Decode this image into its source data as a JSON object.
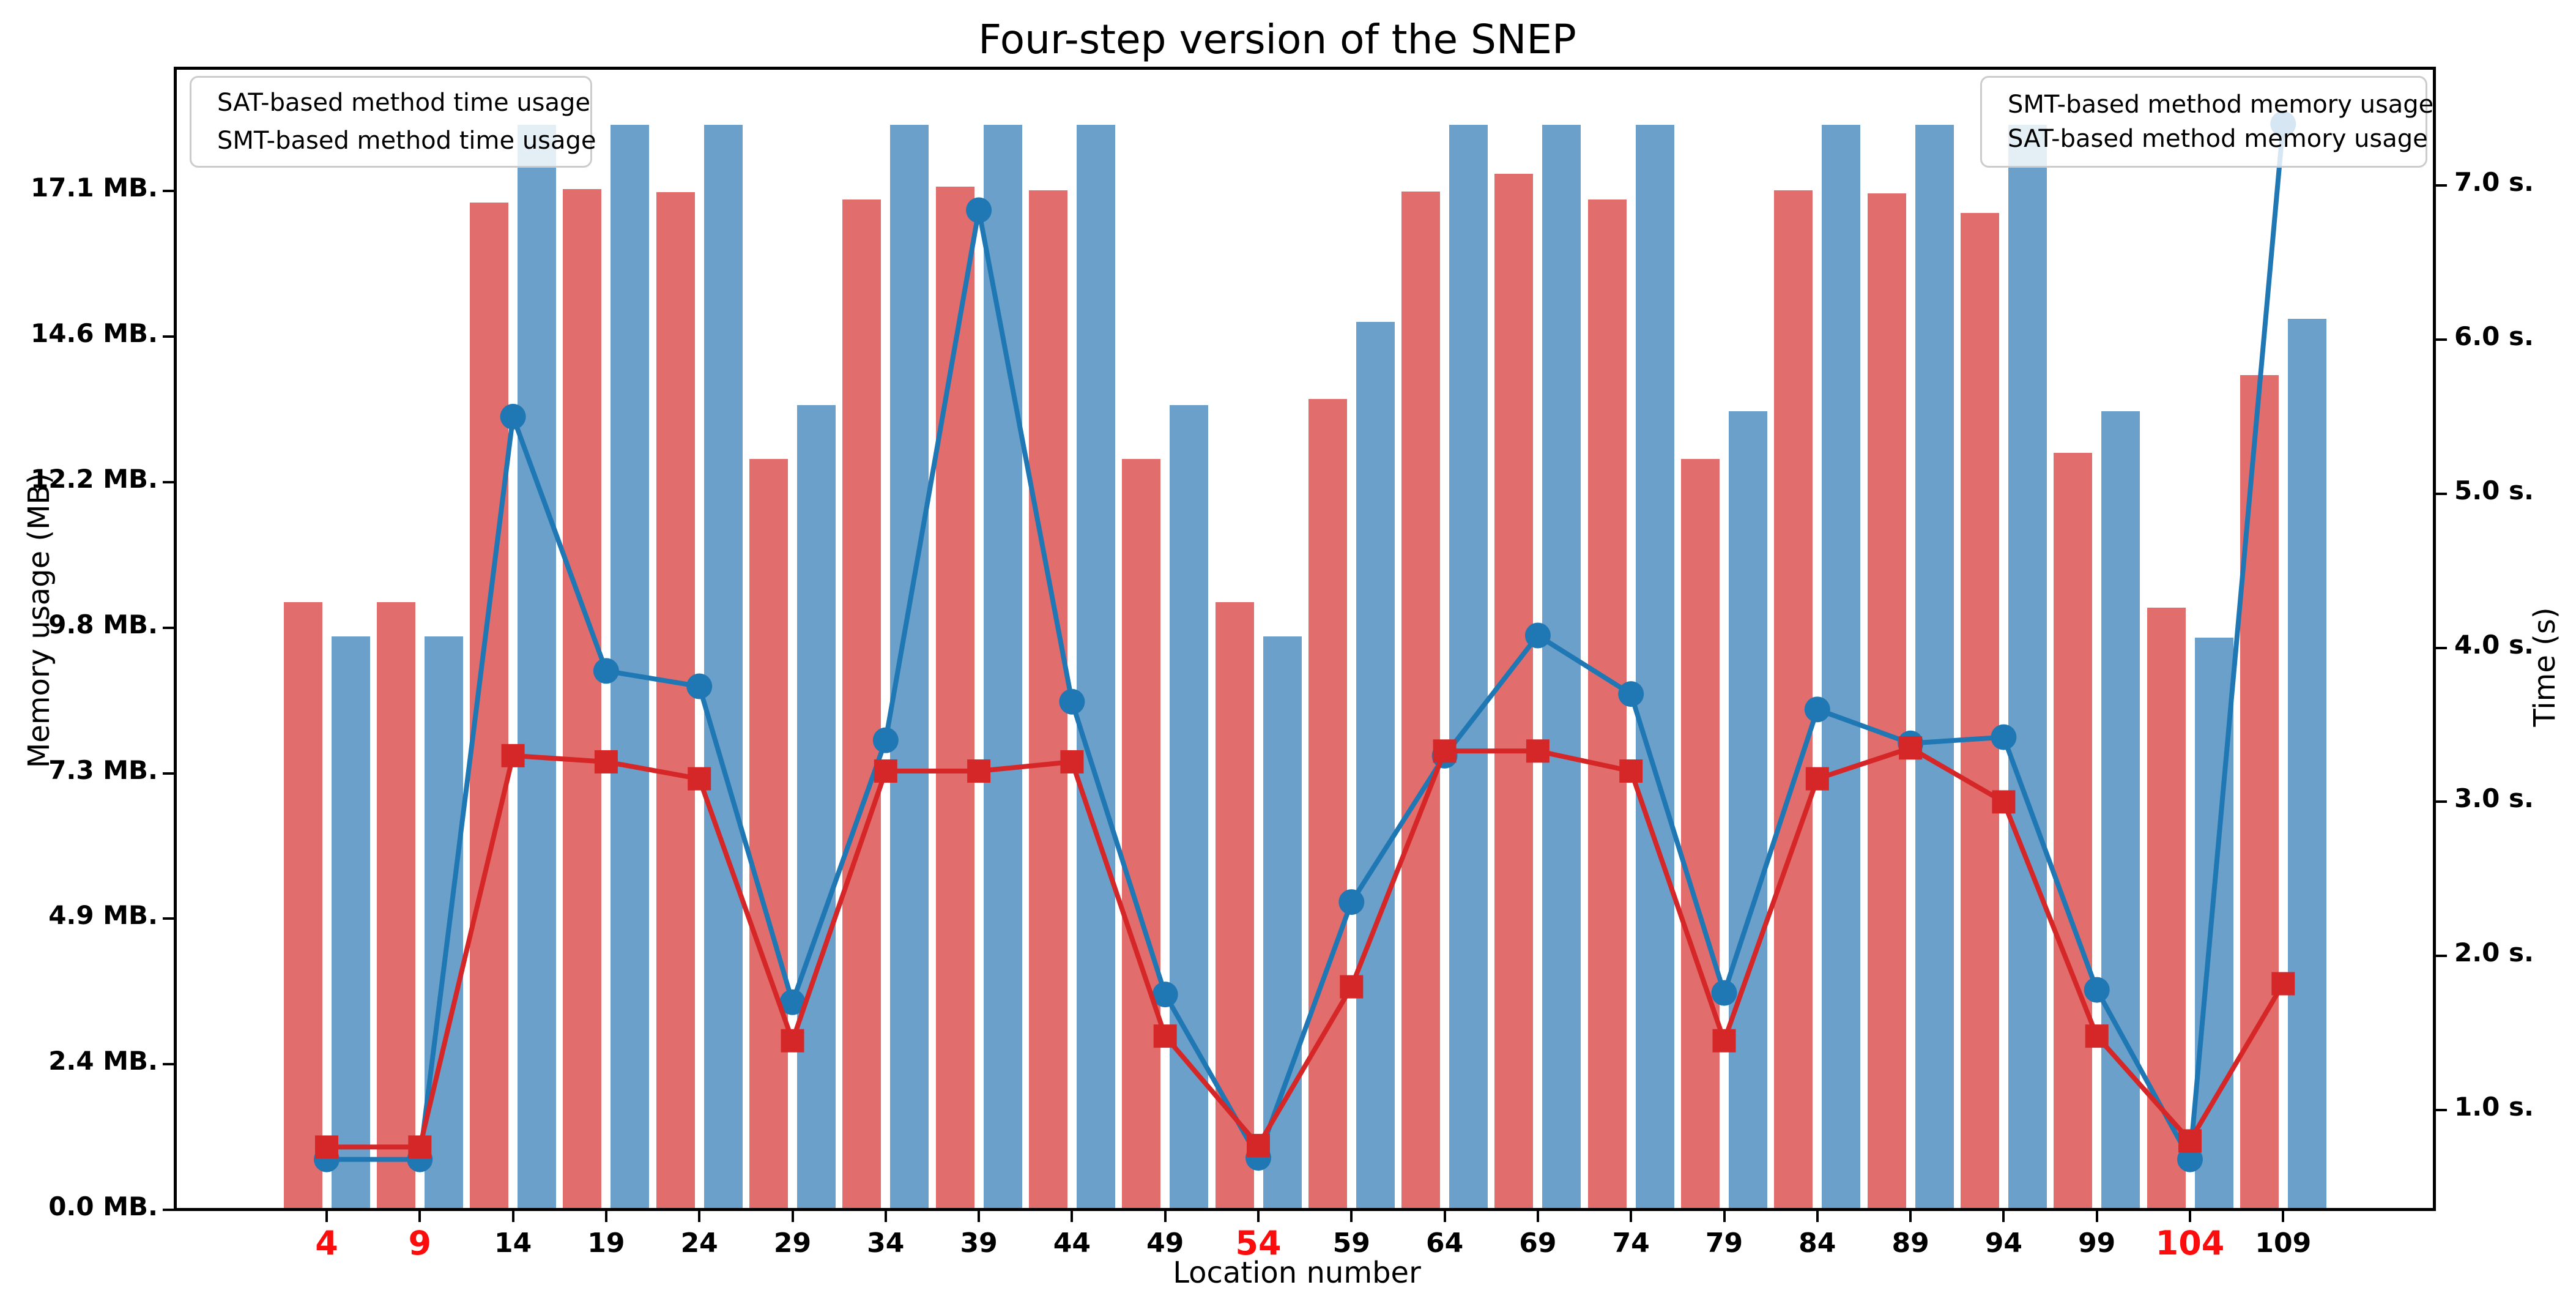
{
  "chart_data": {
    "type": "bar+line dual axis",
    "title": "Four-step version of the SNEP",
    "xlabel": "Location number",
    "ylabel_left": "Memory usage (MB)",
    "ylabel_right": "Time (s)",
    "grid": false,
    "x": [
      4,
      9,
      14,
      19,
      24,
      29,
      34,
      39,
      44,
      49,
      54,
      59,
      64,
      69,
      74,
      79,
      84,
      89,
      94,
      99,
      104,
      109
    ],
    "x_tick_labels_red": [
      4,
      9,
      54,
      104
    ],
    "ylim_left_mb": [
      0,
      19.15
    ],
    "ylim_right_s": [
      0.35,
      7.76
    ],
    "y_left_ticks": [
      {
        "label": "0.0 MB.",
        "value": 0
      },
      {
        "label": "2.4 MB.",
        "value": 2.4414
      },
      {
        "label": "4.9 MB.",
        "value": 4.8828
      },
      {
        "label": "7.3 MB.",
        "value": 7.3242
      },
      {
        "label": "9.8 MB.",
        "value": 9.7656
      },
      {
        "label": "12.2 MB.",
        "value": 12.207
      },
      {
        "label": "14.6 MB.",
        "value": 14.6484
      },
      {
        "label": "17.1 MB.",
        "value": 17.0898
      }
    ],
    "y_right_ticks": [
      {
        "label": "1.0 s.",
        "value": 1
      },
      {
        "label": "2.0 s.",
        "value": 2
      },
      {
        "label": "3.0 s.",
        "value": 3
      },
      {
        "label": "4.0 s.",
        "value": 4
      },
      {
        "label": "5.0 s.",
        "value": 5
      },
      {
        "label": "6.0 s.",
        "value": 6
      },
      {
        "label": "7.0 s.",
        "value": 7
      }
    ],
    "series": [
      {
        "name": "SMT-based method memory usage",
        "type": "bar",
        "axis": "memory_mb",
        "color": "#e26d6d",
        "values": [
          10.2,
          10.2,
          16.9,
          17.13,
          17.07,
          12.6,
          16.95,
          17.17,
          17.1,
          12.6,
          10.2,
          13.6,
          17.08,
          17.38,
          16.95,
          12.6,
          17.1,
          17.05,
          16.72,
          12.7,
          10.1,
          14.0
        ]
      },
      {
        "name": "SAT-based method memory usage",
        "type": "bar",
        "axis": "memory_mb",
        "color": "#6aa0c9",
        "values": [
          9.62,
          9.62,
          18.2,
          18.2,
          18.2,
          13.5,
          18.2,
          18.2,
          18.2,
          13.5,
          9.62,
          14.9,
          18.2,
          18.2,
          18.2,
          13.4,
          18.2,
          18.2,
          18.2,
          13.4,
          9.6,
          14.95
        ]
      },
      {
        "name": "SAT-based method time usage",
        "type": "line",
        "marker": "circle",
        "axis": "time_s",
        "color": "#1f77b4",
        "values": [
          0.68,
          0.68,
          5.5,
          3.85,
          3.75,
          1.7,
          3.4,
          6.84,
          3.65,
          1.75,
          0.69,
          2.35,
          3.3,
          4.08,
          3.7,
          1.76,
          3.6,
          3.38,
          3.42,
          1.78,
          0.68,
          7.4
        ]
      },
      {
        "name": "SMT-based method time usage",
        "type": "line",
        "marker": "square",
        "axis": "time_s",
        "color": "#d62728",
        "values": [
          0.76,
          0.76,
          3.3,
          3.26,
          3.15,
          1.45,
          3.2,
          3.2,
          3.26,
          1.48,
          0.77,
          1.8,
          3.33,
          3.33,
          3.2,
          1.45,
          3.15,
          3.35,
          3.0,
          1.48,
          0.8,
          1.82
        ]
      }
    ],
    "legend_left_entries": [
      "SAT-based method time usage",
      "SMT-based method time usage"
    ],
    "legend_right_entries": [
      "SMT-based method memory usage",
      "SAT-based method memory usage"
    ],
    "colors": {
      "bar_smt_red": "#e26d6d",
      "bar_sat_blue": "#6aa0c9",
      "line_sat_blue": "#1f77b4",
      "line_smt_red": "#d62728",
      "red_x_tick_label": "#fb0d0d",
      "text": "#000000"
    },
    "legend_positions": {
      "left": "upper left",
      "right": "upper right"
    }
  }
}
